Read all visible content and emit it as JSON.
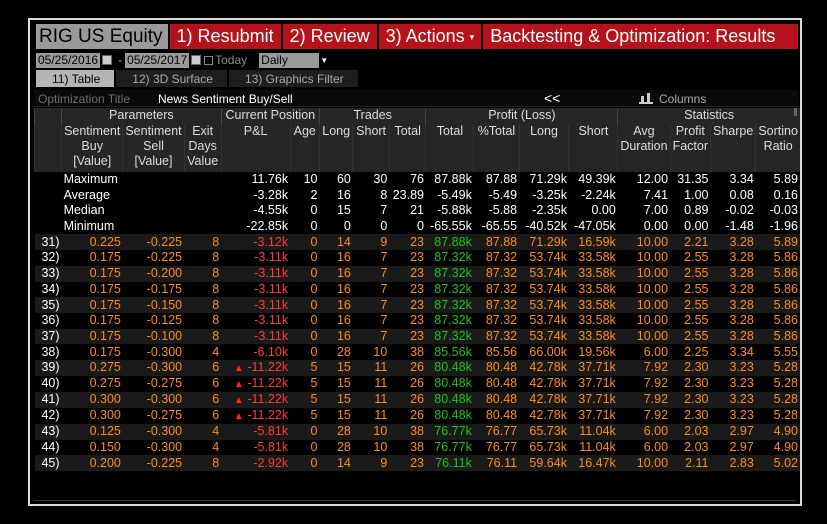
{
  "titlebar": {
    "ticker": "RIG US Equity",
    "resubmit": "1) Resubmit",
    "review": "2) Review",
    "actions": "3) Actions",
    "actions_caret": "▾",
    "backtesting": "Backtesting & Optimization: Results"
  },
  "daterow": {
    "start_date": "05/25/2016",
    "separator": "-",
    "end_date": "05/25/2017",
    "today_label": "Today",
    "period": "Daily",
    "period_caret": "▼"
  },
  "tabs": [
    "11) Table",
    "12) 3D Surface",
    "13) Graphics Filter"
  ],
  "optrow": {
    "label": "Optimization Title",
    "value": "News Sentiment Buy/Sell",
    "collapse_glyph": "<<",
    "columns_label": "Columns"
  },
  "table": {
    "groups": [
      "Parameters",
      "Current Position",
      "Trades",
      "Profit (Loss)",
      "Statistics"
    ],
    "columns": [
      {
        "l1": "Sentiment",
        "l2": "Buy",
        "l3": "[Value]"
      },
      {
        "l1": "Sentiment",
        "l2": "Sell",
        "l3": "[Value]"
      },
      {
        "l1": "Exit",
        "l2": "Days",
        "l3": "Value"
      },
      {
        "l1": "P&L",
        "l2": "",
        "l3": ""
      },
      {
        "l1": "Age",
        "l2": "",
        "l3": ""
      },
      {
        "l1": "Long",
        "l2": "",
        "l3": ""
      },
      {
        "l1": "Short",
        "l2": "",
        "l3": ""
      },
      {
        "l1": "Total",
        "l2": "",
        "l3": ""
      },
      {
        "l1": "Total",
        "l2": "",
        "l3": ""
      },
      {
        "l1": "%Total",
        "l2": "",
        "l3": ""
      },
      {
        "l1": "Long",
        "l2": "",
        "l3": ""
      },
      {
        "l1": "Short",
        "l2": "",
        "l3": ""
      },
      {
        "l1": "Avg",
        "l2": "Duration",
        "l3": ""
      },
      {
        "l1": "Profit",
        "l2": "Factor",
        "l3": ""
      },
      {
        "l1": "Sharpe",
        "l2": "",
        "l3": ""
      },
      {
        "l1": "Sortino",
        "l2": "Ratio",
        "l3": ""
      }
    ],
    "summary": [
      {
        "label": "Maximum",
        "values": [
          "11.76k",
          "10",
          "60",
          "30",
          "76",
          "87.88k",
          "87.88",
          "71.29k",
          "49.39k",
          "12.00",
          "31.35",
          "3.34",
          "5.89"
        ]
      },
      {
        "label": "Average",
        "values": [
          "-3.28k",
          "2",
          "16",
          "8",
          "23.89",
          "-5.49k",
          "-5.49",
          "-3.25k",
          "-2.24k",
          "7.41",
          "1.00",
          "0.08",
          "0.16"
        ]
      },
      {
        "label": "Median",
        "values": [
          "-4.55k",
          "0",
          "15",
          "7",
          "21",
          "-5.88k",
          "-5.88",
          "-2.35k",
          "0.00",
          "7.00",
          "0.89",
          "-0.02",
          "-0.03"
        ]
      },
      {
        "label": "Minimum",
        "values": [
          "-22.85k",
          "0",
          "0",
          "0",
          "0",
          "-65.55k",
          "-65.55",
          "-40.52k",
          "-47.05k",
          "0.00",
          "0.00",
          "-1.48",
          "-1.96"
        ]
      }
    ],
    "rows": [
      {
        "idx": "31)",
        "buy": "0.225",
        "sell": "-0.225",
        "exit": "8",
        "arrow": "",
        "pnl": "-3.12k",
        "age": "0",
        "long": "14",
        "short": "9",
        "total": "23",
        "ptotal": "87.88k",
        "pct": "87.88",
        "plong": "71.29k",
        "pshort": "16.59k",
        "dur": "10.00",
        "pf": "2.21",
        "sharpe": "3.28",
        "sortino": "5.89"
      },
      {
        "idx": "32)",
        "buy": "0.175",
        "sell": "-0.225",
        "exit": "8",
        "arrow": "",
        "pnl": "-3.11k",
        "age": "0",
        "long": "16",
        "short": "7",
        "total": "23",
        "ptotal": "87.32k",
        "pct": "87.32",
        "plong": "53.74k",
        "pshort": "33.58k",
        "dur": "10.00",
        "pf": "2.55",
        "sharpe": "3.28",
        "sortino": "5.86"
      },
      {
        "idx": "33)",
        "buy": "0.175",
        "sell": "-0.200",
        "exit": "8",
        "arrow": "",
        "pnl": "-3.11k",
        "age": "0",
        "long": "16",
        "short": "7",
        "total": "23",
        "ptotal": "87.32k",
        "pct": "87.32",
        "plong": "53.74k",
        "pshort": "33.58k",
        "dur": "10.00",
        "pf": "2.55",
        "sharpe": "3.28",
        "sortino": "5.86"
      },
      {
        "idx": "34)",
        "buy": "0.175",
        "sell": "-0.175",
        "exit": "8",
        "arrow": "",
        "pnl": "-3.11k",
        "age": "0",
        "long": "16",
        "short": "7",
        "total": "23",
        "ptotal": "87.32k",
        "pct": "87.32",
        "plong": "53.74k",
        "pshort": "33.58k",
        "dur": "10.00",
        "pf": "2.55",
        "sharpe": "3.28",
        "sortino": "5.86"
      },
      {
        "idx": "35)",
        "buy": "0.175",
        "sell": "-0.150",
        "exit": "8",
        "arrow": "",
        "pnl": "-3.11k",
        "age": "0",
        "long": "16",
        "short": "7",
        "total": "23",
        "ptotal": "87.32k",
        "pct": "87.32",
        "plong": "53.74k",
        "pshort": "33.58k",
        "dur": "10.00",
        "pf": "2.55",
        "sharpe": "3.28",
        "sortino": "5.86"
      },
      {
        "idx": "36)",
        "buy": "0.175",
        "sell": "-0.125",
        "exit": "8",
        "arrow": "",
        "pnl": "-3.11k",
        "age": "0",
        "long": "16",
        "short": "7",
        "total": "23",
        "ptotal": "87.32k",
        "pct": "87.32",
        "plong": "53.74k",
        "pshort": "33.58k",
        "dur": "10.00",
        "pf": "2.55",
        "sharpe": "3.28",
        "sortino": "5.86"
      },
      {
        "idx": "37)",
        "buy": "0.175",
        "sell": "-0.100",
        "exit": "8",
        "arrow": "",
        "pnl": "-3.11k",
        "age": "0",
        "long": "16",
        "short": "7",
        "total": "23",
        "ptotal": "87.32k",
        "pct": "87.32",
        "plong": "53.74k",
        "pshort": "33.58k",
        "dur": "10.00",
        "pf": "2.55",
        "sharpe": "3.28",
        "sortino": "5.86"
      },
      {
        "idx": "38)",
        "buy": "0.175",
        "sell": "-0.300",
        "exit": "4",
        "arrow": "",
        "pnl": "-6.10k",
        "age": "0",
        "long": "28",
        "short": "10",
        "total": "38",
        "ptotal": "85.56k",
        "pct": "85.56",
        "plong": "66.00k",
        "pshort": "19.56k",
        "dur": "6.00",
        "pf": "2.25",
        "sharpe": "3.34",
        "sortino": "5.55"
      },
      {
        "idx": "39)",
        "buy": "0.275",
        "sell": "-0.300",
        "exit": "6",
        "arrow": "▲",
        "pnl": "-11.22k",
        "age": "5",
        "long": "15",
        "short": "11",
        "total": "26",
        "ptotal": "80.48k",
        "pct": "80.48",
        "plong": "42.78k",
        "pshort": "37.71k",
        "dur": "7.92",
        "pf": "2.30",
        "sharpe": "3.23",
        "sortino": "5.28"
      },
      {
        "idx": "40)",
        "buy": "0.275",
        "sell": "-0.275",
        "exit": "6",
        "arrow": "▲",
        "pnl": "-11.22k",
        "age": "5",
        "long": "15",
        "short": "11",
        "total": "26",
        "ptotal": "80.48k",
        "pct": "80.48",
        "plong": "42.78k",
        "pshort": "37.71k",
        "dur": "7.92",
        "pf": "2.30",
        "sharpe": "3.23",
        "sortino": "5.28"
      },
      {
        "idx": "41)",
        "buy": "0.300",
        "sell": "-0.300",
        "exit": "6",
        "arrow": "▲",
        "pnl": "-11.22k",
        "age": "5",
        "long": "15",
        "short": "11",
        "total": "26",
        "ptotal": "80.48k",
        "pct": "80.48",
        "plong": "42.78k",
        "pshort": "37.71k",
        "dur": "7.92",
        "pf": "2.30",
        "sharpe": "3.23",
        "sortino": "5.28"
      },
      {
        "idx": "42)",
        "buy": "0.300",
        "sell": "-0.275",
        "exit": "6",
        "arrow": "▲",
        "pnl": "-11.22k",
        "age": "5",
        "long": "15",
        "short": "11",
        "total": "26",
        "ptotal": "80.48k",
        "pct": "80.48",
        "plong": "42.78k",
        "pshort": "37.71k",
        "dur": "7.92",
        "pf": "2.30",
        "sharpe": "3.23",
        "sortino": "5.28"
      },
      {
        "idx": "43)",
        "buy": "0.125",
        "sell": "-0.300",
        "exit": "4",
        "arrow": "",
        "pnl": "-5.81k",
        "age": "0",
        "long": "28",
        "short": "10",
        "total": "38",
        "ptotal": "76.77k",
        "pct": "76.77",
        "plong": "65.73k",
        "pshort": "11.04k",
        "dur": "6.00",
        "pf": "2.03",
        "sharpe": "2.97",
        "sortino": "4.90"
      },
      {
        "idx": "44)",
        "buy": "0.150",
        "sell": "-0.300",
        "exit": "4",
        "arrow": "",
        "pnl": "-5.81k",
        "age": "0",
        "long": "28",
        "short": "10",
        "total": "38",
        "ptotal": "76.77k",
        "pct": "76.77",
        "plong": "65.73k",
        "pshort": "11.04k",
        "dur": "6.00",
        "pf": "2.03",
        "sharpe": "2.97",
        "sortino": "4.90"
      },
      {
        "idx": "45)",
        "buy": "0.200",
        "sell": "-0.225",
        "exit": "8",
        "arrow": "",
        "pnl": "-2.92k",
        "age": "0",
        "long": "14",
        "short": "9",
        "total": "23",
        "ptotal": "76.11k",
        "pct": "76.11",
        "plong": "59.64k",
        "pshort": "16.47k",
        "dur": "10.00",
        "pf": "2.11",
        "sharpe": "2.83",
        "sortino": "5.02"
      }
    ]
  },
  "colors": {
    "accent_red": "#b5121b",
    "param_orange": "#ff8c1a",
    "loss_red": "#ff3b30",
    "profit_green": "#19c419"
  }
}
